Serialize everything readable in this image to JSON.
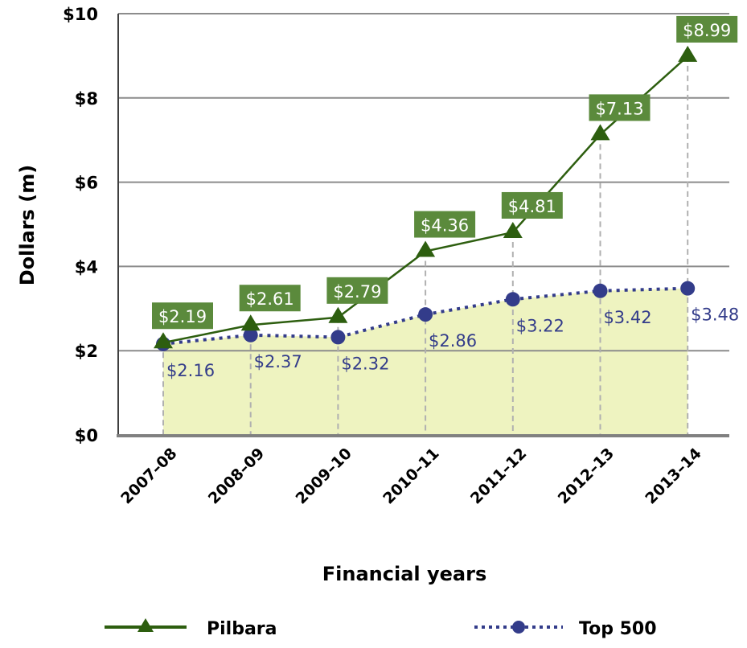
{
  "chart_data": {
    "type": "line",
    "title": "",
    "xlabel": "Financial years",
    "ylabel": "Dollars (m)",
    "ylim": [
      0,
      10
    ],
    "yticks": [
      "$0",
      "$2",
      "$4",
      "$6",
      "$8",
      "$10"
    ],
    "categories": [
      "2007–08",
      "2008–09",
      "2009–10",
      "2010–11",
      "2011–12",
      "2012–13",
      "2013–14"
    ],
    "grid": true,
    "legend_position": "bottom",
    "series": [
      {
        "name": "Pilbara",
        "values": [
          2.19,
          2.61,
          2.79,
          4.36,
          4.81,
          7.13,
          8.99
        ],
        "labels": [
          "$2.19",
          "$2.61",
          "$2.79",
          "$4.36",
          "$4.81",
          "$7.13",
          "$8.99"
        ],
        "color": "#2d5e0f",
        "label_bg": "#5b8a3c",
        "marker": "triangle",
        "line_style": "solid"
      },
      {
        "name": "Top 500",
        "values": [
          2.16,
          2.37,
          2.32,
          2.86,
          3.22,
          3.42,
          3.48
        ],
        "labels": [
          "$2.16",
          "$2.37",
          "$2.32",
          "$2.86",
          "$3.22",
          "$3.42",
          "$3.48"
        ],
        "color": "#333c8a",
        "area_fill": "#eef3c0",
        "marker": "circle",
        "line_style": "dotted"
      }
    ]
  }
}
